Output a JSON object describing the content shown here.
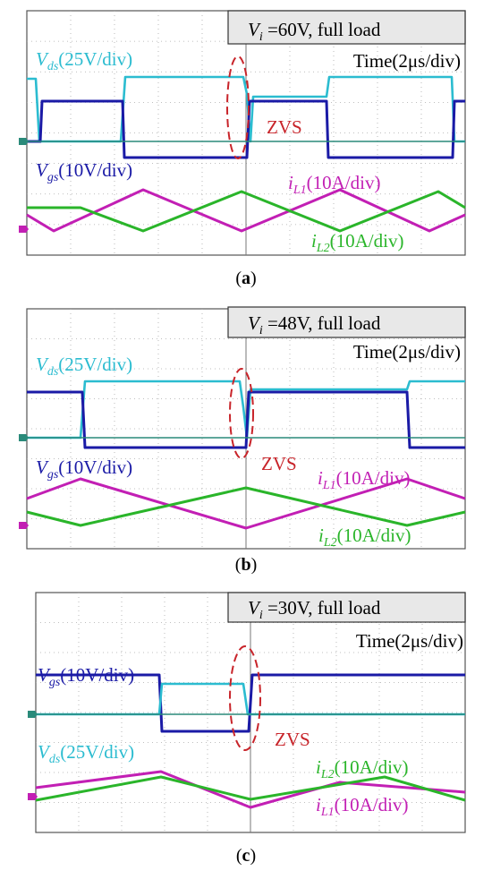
{
  "chart_data": [
    {
      "type": "line",
      "panel": "a",
      "caption_letter": "a",
      "header": {
        "symbol": "V",
        "sub": "i",
        "rest": " =60V, full load"
      },
      "time_scale": "Time(2μs/div)",
      "zvs_label": "ZVS",
      "x_divisions": 10,
      "y_divisions": 8,
      "series": [
        {
          "name": "Vds",
          "sub": "ds",
          "label": "(25V/div)",
          "color": "#2bbcd0"
        },
        {
          "name": "Vgs",
          "sub": "gs",
          "label": "(10V/div)",
          "color": "#1a1aa6"
        },
        {
          "name": "iL1",
          "sub": "L1",
          "label": "(10A/div)",
          "color": "#c21fb4"
        },
        {
          "name": "iL2",
          "sub": "L2",
          "label": "(10A/div)",
          "color": "#2ab52a"
        }
      ]
    },
    {
      "type": "line",
      "panel": "b",
      "caption_letter": "b",
      "header": {
        "symbol": "V",
        "sub": "i",
        "rest": " =48V, full load"
      },
      "time_scale": "Time(2μs/div)",
      "zvs_label": "ZVS",
      "x_divisions": 10,
      "y_divisions": 8,
      "series": [
        {
          "name": "Vds",
          "sub": "ds",
          "label": "(25V/div)",
          "color": "#2bbcd0"
        },
        {
          "name": "Vgs",
          "sub": "gs",
          "label": "(10V/div)",
          "color": "#1a1aa6"
        },
        {
          "name": "iL1",
          "sub": "L1",
          "label": "(10A/div)",
          "color": "#c21fb4"
        },
        {
          "name": "iL2",
          "sub": "L2",
          "label": "(10A/div)",
          "color": "#2ab52a"
        }
      ]
    },
    {
      "type": "line",
      "panel": "c",
      "caption_letter": "c",
      "header": {
        "symbol": "V",
        "sub": "i",
        "rest": " =30V, full load"
      },
      "time_scale": "Time(2μs/div)",
      "zvs_label": "ZVS",
      "x_divisions": 10,
      "y_divisions": 8,
      "series": [
        {
          "name": "Vgs",
          "sub": "gs",
          "label": "(10V/div)",
          "color": "#1a1aa6"
        },
        {
          "name": "Vds",
          "sub": "ds",
          "label": "(25V/div)",
          "color": "#2bbcd0"
        },
        {
          "name": "iL2",
          "sub": "L2",
          "label": "(10A/div)",
          "color": "#2ab52a"
        },
        {
          "name": "iL1",
          "sub": "L1",
          "label": "(10A/div)",
          "color": "#c21fb4"
        }
      ]
    }
  ]
}
